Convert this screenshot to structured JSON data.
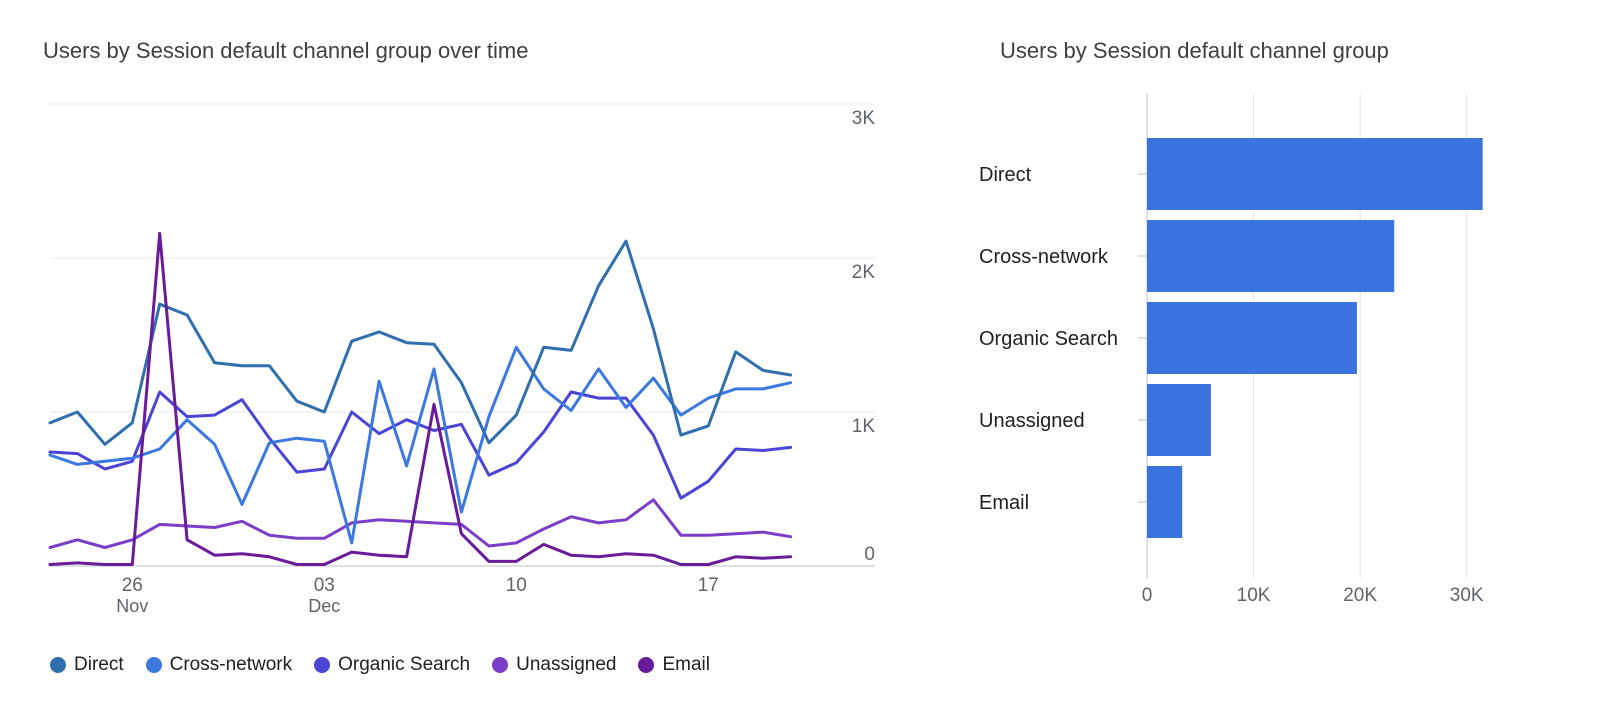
{
  "line_card": {
    "title": "Users by Session default channel group over time"
  },
  "bar_card": {
    "title": "Users by Session default channel group"
  },
  "chart_data": [
    {
      "type": "line",
      "title": "Users by Session default channel group over time",
      "x": [
        "2023-11-23",
        "2023-11-24",
        "2023-11-25",
        "2023-11-26",
        "2023-11-27",
        "2023-11-28",
        "2023-11-29",
        "2023-11-30",
        "2023-12-01",
        "2023-12-02",
        "2023-12-03",
        "2023-12-04",
        "2023-12-05",
        "2023-12-06",
        "2023-12-07",
        "2023-12-08",
        "2023-12-09",
        "2023-12-10",
        "2023-12-11",
        "2023-12-12",
        "2023-12-13",
        "2023-12-14",
        "2023-12-15",
        "2023-12-16",
        "2023-12-17",
        "2023-12-18",
        "2023-12-19",
        "2023-12-20",
        "2023-12-21"
      ],
      "x_ticks": [
        {
          "date": "2023-11-26",
          "label": "26",
          "sublabel": "Nov"
        },
        {
          "date": "2023-12-03",
          "label": "03",
          "sublabel": "Dec"
        },
        {
          "date": "2023-12-10",
          "label": "10",
          "sublabel": ""
        },
        {
          "date": "2023-12-17",
          "label": "17",
          "sublabel": ""
        }
      ],
      "y_ticks": [
        {
          "value": 0,
          "label": "0"
        },
        {
          "value": 1000,
          "label": "1K"
        },
        {
          "value": 2000,
          "label": "2K"
        },
        {
          "value": 3000,
          "label": "3K"
        }
      ],
      "ylim": [
        0,
        3000
      ],
      "axis_side": "right",
      "legend_position": "bottom",
      "grid": true,
      "series": [
        {
          "name": "Direct",
          "color": "#2f6fae",
          "values": [
            930,
            1000,
            790,
            930,
            1700,
            1630,
            1320,
            1300,
            1300,
            1070,
            1000,
            1460,
            1520,
            1450,
            1440,
            1190,
            800,
            980,
            1420,
            1400,
            1820,
            2110,
            1540,
            850,
            910,
            1390,
            1270,
            1240,
            null
          ]
        },
        {
          "name": "Cross-network",
          "color": "#3b78e0",
          "values": [
            720,
            660,
            680,
            700,
            760,
            950,
            790,
            400,
            800,
            830,
            810,
            150,
            1200,
            650,
            1280,
            350,
            970,
            1420,
            1150,
            1010,
            1280,
            1030,
            1220,
            980,
            1090,
            1150,
            1150,
            1190,
            null
          ]
        },
        {
          "name": "Organic Search",
          "color": "#4b45d6",
          "values": [
            740,
            730,
            630,
            680,
            1130,
            970,
            980,
            1080,
            830,
            610,
            630,
            1000,
            860,
            950,
            880,
            920,
            590,
            670,
            870,
            1130,
            1090,
            1090,
            850,
            440,
            550,
            760,
            750,
            770,
            null
          ]
        },
        {
          "name": "Unassigned",
          "color": "#7a3ec8",
          "values": [
            120,
            170,
            120,
            170,
            270,
            260,
            250,
            290,
            200,
            180,
            180,
            280,
            300,
            290,
            280,
            270,
            130,
            150,
            240,
            320,
            280,
            300,
            430,
            200,
            200,
            210,
            220,
            190,
            null
          ]
        },
        {
          "name": "Email",
          "color": "#6a1b9a",
          "values": [
            10,
            20,
            10,
            10,
            2160,
            170,
            70,
            80,
            60,
            10,
            10,
            90,
            70,
            60,
            1050,
            210,
            30,
            30,
            140,
            70,
            60,
            80,
            70,
            10,
            10,
            60,
            50,
            60,
            null
          ]
        }
      ]
    },
    {
      "type": "bar",
      "orientation": "horizontal",
      "title": "Users by Session default channel group",
      "categories": [
        "Direct",
        "Cross-network",
        "Organic Search",
        "Unassigned",
        "Email"
      ],
      "values": [
        31500,
        23200,
        19700,
        6000,
        3300
      ],
      "color": "#3b73de",
      "xlim": [
        0,
        35000
      ],
      "x_ticks": [
        {
          "value": 0,
          "label": "0"
        },
        {
          "value": 10000,
          "label": "10K"
        },
        {
          "value": 20000,
          "label": "20K"
        },
        {
          "value": 30000,
          "label": "30K"
        }
      ],
      "grid": true
    }
  ]
}
